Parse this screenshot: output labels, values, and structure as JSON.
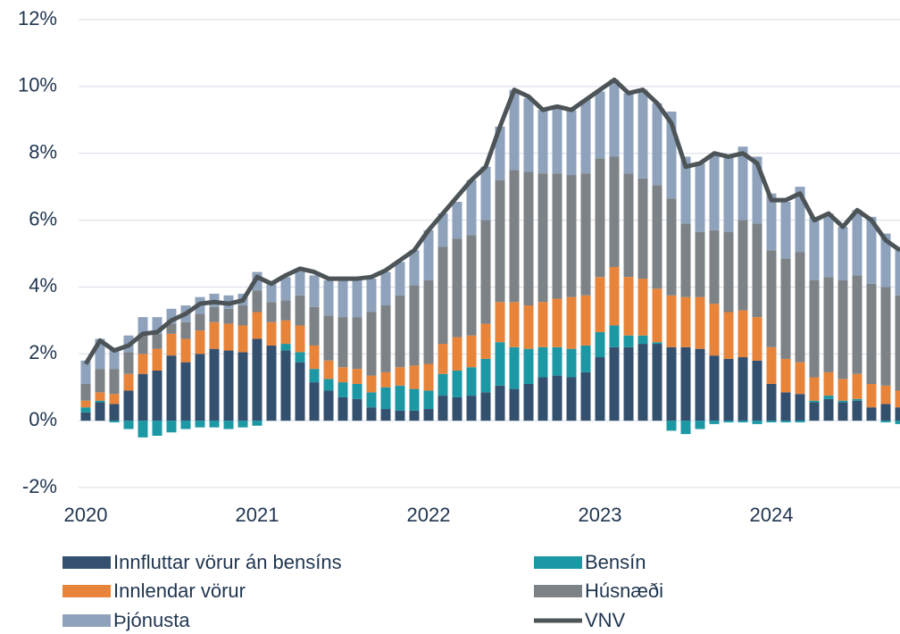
{
  "chart_data": {
    "type": "bar",
    "stacked": true,
    "categories": [
      "2020",
      null,
      null,
      null,
      null,
      null,
      null,
      null,
      null,
      null,
      null,
      null,
      "2021",
      null,
      null,
      null,
      null,
      null,
      null,
      null,
      null,
      null,
      null,
      null,
      "2022",
      null,
      null,
      null,
      null,
      null,
      null,
      null,
      null,
      null,
      null,
      null,
      "2023",
      null,
      null,
      null,
      null,
      null,
      null,
      null,
      null,
      null,
      null,
      null,
      "2024",
      null,
      null,
      null,
      null,
      null,
      null,
      null,
      null,
      null
    ],
    "series": [
      {
        "name": "Innfluttar vörur án bensíns",
        "color": "#34506f",
        "values": [
          0.25,
          0.55,
          0.5,
          0.9,
          1.4,
          1.5,
          1.95,
          1.75,
          2.0,
          2.15,
          2.1,
          2.05,
          2.45,
          2.25,
          2.1,
          1.75,
          1.15,
          0.9,
          0.7,
          0.65,
          0.4,
          0.35,
          0.3,
          0.3,
          0.35,
          0.75,
          0.7,
          0.75,
          0.85,
          1.05,
          0.95,
          1.1,
          1.3,
          1.35,
          1.3,
          1.45,
          1.9,
          2.2,
          2.2,
          2.3,
          2.3,
          2.2,
          2.2,
          2.15,
          1.95,
          1.85,
          1.9,
          1.8,
          1.1,
          0.85,
          0.8,
          0.55,
          0.65,
          0.55,
          0.6,
          0.4,
          0.5,
          0.4
        ]
      },
      {
        "name": "Bensín",
        "color": "#1b98a4",
        "values": [
          0.15,
          0.05,
          -0.05,
          -0.25,
          -0.5,
          -0.45,
          -0.35,
          -0.25,
          -0.2,
          -0.2,
          -0.25,
          -0.2,
          -0.15,
          0.0,
          0.2,
          0.3,
          0.4,
          0.35,
          0.45,
          0.45,
          0.45,
          0.65,
          0.75,
          0.65,
          0.55,
          0.65,
          0.8,
          0.85,
          1.0,
          1.3,
          1.25,
          1.05,
          0.9,
          0.85,
          0.85,
          0.8,
          0.75,
          0.65,
          0.35,
          0.25,
          0.05,
          -0.3,
          -0.4,
          -0.25,
          -0.1,
          -0.05,
          -0.05,
          -0.1,
          -0.05,
          -0.05,
          -0.05,
          0.05,
          0.1,
          0.05,
          0.05,
          0.0,
          -0.05,
          -0.1
        ]
      },
      {
        "name": "Innlendar vörur",
        "color": "#e8833a",
        "values": [
          0.2,
          0.25,
          0.3,
          0.5,
          0.6,
          0.65,
          0.65,
          0.7,
          0.7,
          0.8,
          0.8,
          0.8,
          0.8,
          0.7,
          0.7,
          0.8,
          0.7,
          0.55,
          0.45,
          0.45,
          0.5,
          0.45,
          0.55,
          0.7,
          0.8,
          0.9,
          1.0,
          0.95,
          1.05,
          1.2,
          1.35,
          1.3,
          1.35,
          1.45,
          1.55,
          1.5,
          1.65,
          1.75,
          1.75,
          1.7,
          1.6,
          1.55,
          1.5,
          1.55,
          1.55,
          1.4,
          1.4,
          1.3,
          1.1,
          1.0,
          0.95,
          0.7,
          0.7,
          0.65,
          0.75,
          0.7,
          0.55,
          0.5
        ]
      },
      {
        "name": "Húsnæði",
        "color": "#7c8285",
        "values": [
          0.5,
          0.7,
          0.75,
          0.65,
          0.6,
          0.45,
          0.3,
          0.5,
          0.5,
          0.45,
          0.45,
          0.6,
          0.65,
          0.6,
          0.6,
          0.9,
          1.15,
          1.35,
          1.5,
          1.55,
          1.9,
          2.0,
          2.15,
          2.4,
          2.5,
          2.9,
          2.95,
          3.0,
          3.1,
          3.65,
          3.95,
          4.0,
          3.85,
          3.75,
          3.65,
          3.65,
          3.55,
          3.3,
          3.1,
          3.0,
          3.1,
          2.9,
          2.2,
          1.95,
          2.2,
          2.4,
          2.7,
          2.8,
          2.9,
          3.0,
          3.3,
          2.9,
          2.85,
          2.95,
          2.95,
          3.0,
          2.95,
          2.85
        ]
      },
      {
        "name": "Þjónusta",
        "color": "#8ea2bc",
        "values": [
          0.7,
          0.9,
          0.55,
          0.5,
          0.5,
          0.5,
          0.45,
          0.5,
          0.5,
          0.4,
          0.4,
          0.35,
          0.55,
          0.6,
          0.7,
          0.75,
          0.95,
          1.05,
          1.1,
          1.1,
          1.0,
          1.0,
          1.0,
          1.05,
          1.5,
          1.0,
          1.1,
          1.65,
          1.6,
          1.6,
          2.4,
          2.2,
          1.9,
          2.0,
          1.95,
          2.2,
          2.0,
          2.3,
          2.4,
          2.65,
          2.45,
          2.6,
          2.0,
          2.05,
          2.25,
          2.3,
          2.2,
          2.0,
          1.7,
          1.7,
          1.95,
          1.9,
          1.9,
          1.6,
          1.95,
          2.0,
          1.6,
          1.45
        ]
      },
      {
        "name": "VNV",
        "type": "line",
        "color": "#4d5457",
        "values": [
          1.7,
          2.4,
          2.1,
          2.25,
          2.6,
          2.65,
          3.0,
          3.2,
          3.5,
          3.55,
          3.5,
          3.6,
          4.3,
          4.1,
          4.35,
          4.55,
          4.45,
          4.25,
          4.25,
          4.25,
          4.3,
          4.5,
          4.8,
          5.1,
          5.7,
          6.2,
          6.7,
          7.2,
          7.6,
          8.8,
          9.9,
          9.7,
          9.3,
          9.4,
          9.3,
          9.6,
          9.9,
          10.2,
          9.8,
          9.9,
          9.5,
          8.9,
          7.6,
          7.7,
          8.0,
          7.9,
          8.0,
          7.7,
          6.6,
          6.6,
          6.8,
          6.0,
          6.2,
          5.8,
          6.3,
          6.0,
          5.4,
          5.1
        ]
      }
    ],
    "ylim": [
      -2,
      12
    ],
    "yticks": [
      {
        "value": -2,
        "label": "-2%"
      },
      {
        "value": 0,
        "label": "0%"
      },
      {
        "value": 2,
        "label": "2%"
      },
      {
        "value": 4,
        "label": "4%"
      },
      {
        "value": 6,
        "label": "6%"
      },
      {
        "value": 8,
        "label": "8%"
      },
      {
        "value": 10,
        "label": "10%"
      },
      {
        "value": 12,
        "label": "12%"
      }
    ],
    "grid": true,
    "legend": "bottom"
  }
}
